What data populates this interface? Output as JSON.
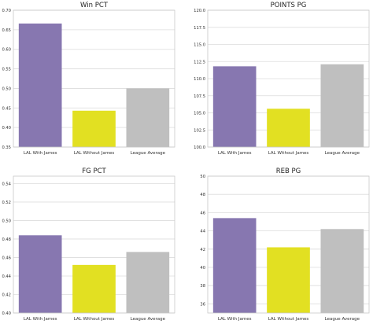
{
  "chart_data": [
    {
      "type": "bar",
      "title": "Win PCT",
      "xlabel": "",
      "ylabel": "",
      "categories": [
        "LAL With James",
        "LAL Without James",
        "League Average"
      ],
      "values": [
        0.666,
        0.443,
        0.5
      ],
      "ylim": [
        0.35,
        0.7
      ],
      "yticks": [
        "0.35",
        "0.40",
        "0.45",
        "0.50",
        "0.55",
        "0.60",
        "0.65",
        "0.70"
      ],
      "grid": true,
      "colors": [
        "#8777b0",
        "#e2e022",
        "#bfbfbf"
      ]
    },
    {
      "type": "bar",
      "title": "POINTS PG",
      "xlabel": "",
      "ylabel": "",
      "categories": [
        "LAL With James",
        "LAL Without James",
        "League Average"
      ],
      "values": [
        111.8,
        105.6,
        112.1
      ],
      "ylim": [
        100,
        120
      ],
      "yticks": [
        "100.0",
        "102.5",
        "105.0",
        "107.5",
        "110.0",
        "112.5",
        "115.0",
        "117.5",
        "120.0"
      ],
      "grid": true,
      "colors": [
        "#8777b0",
        "#e2e022",
        "#bfbfbf"
      ]
    },
    {
      "type": "bar",
      "title": "FG PCT",
      "xlabel": "",
      "ylabel": "",
      "categories": [
        "LAL With James",
        "LAL Without James",
        "League Average"
      ],
      "values": [
        0.484,
        0.452,
        0.466
      ],
      "ylim": [
        0.4,
        0.548
      ],
      "yticks": [
        "0.40",
        "0.42",
        "0.44",
        "0.46",
        "0.48",
        "0.50",
        "0.52",
        "0.54"
      ],
      "grid": true,
      "colors": [
        "#8777b0",
        "#e2e022",
        "#bfbfbf"
      ]
    },
    {
      "type": "bar",
      "title": "REB PG",
      "xlabel": "",
      "ylabel": "",
      "categories": [
        "LAL With James",
        "LAL Without James",
        "League Average"
      ],
      "values": [
        45.4,
        42.2,
        44.2
      ],
      "ylim": [
        35,
        50
      ],
      "yticks": [
        "36",
        "38",
        "40",
        "42",
        "44",
        "46",
        "48",
        "50"
      ],
      "grid": true,
      "colors": [
        "#8777b0",
        "#e2e022",
        "#bfbfbf"
      ]
    }
  ]
}
